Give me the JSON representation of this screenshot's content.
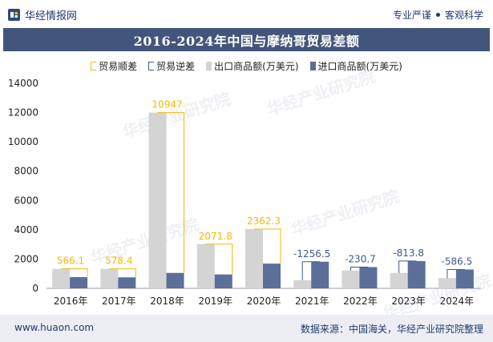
{
  "header": {
    "brand": "华经情报网",
    "tag1": "专业严谨",
    "tag2": "客观科学"
  },
  "title": "2016-2024年中国与摩纳哥贸易差额",
  "legend": [
    {
      "label": "贸易顺差",
      "kind": "surplus"
    },
    {
      "label": "贸易逆差",
      "kind": "deficit"
    },
    {
      "label": "出口商品额(万美元)",
      "kind": "export"
    },
    {
      "label": "进口商品额(万美元)",
      "kind": "import"
    }
  ],
  "colors": {
    "export": "#d4d4d4",
    "import": "#5b6f9a",
    "surplus": "#f5b800",
    "deficit": "#3c5a8c",
    "title_bg": "#43557a"
  },
  "footer": {
    "url": "www.huaon.com",
    "source": "数据来源：中国海关，华经产业研究院整理"
  },
  "watermark": "华经产业研究院",
  "chart_data": {
    "type": "bar",
    "title": "2016-2024年中国与摩纳哥贸易差额",
    "categories": [
      "2016年",
      "2017年",
      "2018年",
      "2019年",
      "2020年",
      "2021年",
      "2022年",
      "2023年",
      "2024年"
    ],
    "series": [
      {
        "name": "出口商品额(万美元)",
        "values": [
          1330,
          1330,
          12000,
          3020,
          4050,
          560,
          1220,
          1050,
          700
        ]
      },
      {
        "name": "进口商品额(万美元)",
        "values": [
          764,
          751,
          1053,
          948,
          1688,
          1817,
          1451,
          1864,
          1287
        ]
      }
    ],
    "balance": [
      566.1,
      578.4,
      10947,
      2071.8,
      2362.3,
      -1256.5,
      -230.7,
      -813.8,
      -586.5
    ],
    "balance_labels": [
      "566.1",
      "578.4",
      "10947",
      "2071.8",
      "2362.3",
      "-1256.5",
      "-230.7",
      "-813.8",
      "-586.5"
    ],
    "y_ticks": [
      "0",
      "2000",
      "4000",
      "6000",
      "8000",
      "10000",
      "12000",
      "14000"
    ],
    "ylim": [
      0,
      14000
    ],
    "xlabel": "",
    "ylabel": ""
  }
}
